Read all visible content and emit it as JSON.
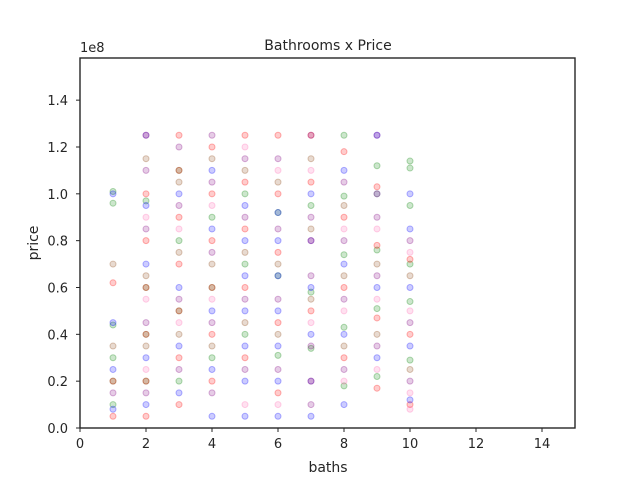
{
  "chart_data": {
    "type": "scatter",
    "title": "Bathrooms x Price",
    "xlabel": "baths",
    "ylabel": "price",
    "y_offset_label": "1e8",
    "xlim": [
      0,
      15
    ],
    "ylim": [
      0,
      158000000
    ],
    "xticks": [
      0,
      2,
      4,
      6,
      8,
      10,
      12,
      14
    ],
    "yticks": [
      0,
      20000000,
      40000000,
      60000000,
      80000000,
      100000000,
      120000000,
      140000000
    ],
    "xtick_labels": [
      "0",
      "2",
      "4",
      "6",
      "8",
      "10",
      "12",
      "14"
    ],
    "ytick_labels": [
      "0.0",
      "0.2",
      "0.4",
      "0.6",
      "0.8",
      "1.0",
      "1.2",
      "1.4"
    ],
    "grid": false,
    "legend": "none",
    "marker_alpha": 0.2,
    "series": [
      {
        "color": "#008000",
        "points": [
          [
            1,
            101000000
          ],
          [
            1,
            96000000
          ],
          [
            1,
            44000000
          ],
          [
            1,
            30000000
          ],
          [
            1,
            20000000
          ],
          [
            1,
            10000000
          ],
          [
            2,
            97000000
          ],
          [
            2,
            60000000
          ],
          [
            2,
            40000000
          ],
          [
            2,
            20000000
          ],
          [
            3,
            110000000
          ],
          [
            3,
            80000000
          ],
          [
            3,
            50000000
          ],
          [
            3,
            20000000
          ],
          [
            4,
            90000000
          ],
          [
            4,
            60000000
          ],
          [
            4,
            30000000
          ],
          [
            5,
            100000000
          ],
          [
            5,
            70000000
          ],
          [
            5,
            40000000
          ],
          [
            6,
            92000000
          ],
          [
            6,
            65000000
          ],
          [
            6,
            31000000
          ],
          [
            7,
            95000000
          ],
          [
            7,
            58000000
          ],
          [
            7,
            34000000
          ],
          [
            8,
            125000000
          ],
          [
            8,
            99000000
          ],
          [
            8,
            74000000
          ],
          [
            8,
            43000000
          ],
          [
            8,
            18000000
          ],
          [
            9,
            112000000
          ],
          [
            9,
            76000000
          ],
          [
            9,
            51000000
          ],
          [
            9,
            22000000
          ],
          [
            10,
            114000000
          ],
          [
            10,
            111000000
          ],
          [
            10,
            95000000
          ],
          [
            10,
            70000000
          ],
          [
            10,
            54000000
          ],
          [
            10,
            29000000
          ]
        ]
      },
      {
        "color": "#ff0000",
        "points": [
          [
            1,
            62000000
          ],
          [
            1,
            20000000
          ],
          [
            1,
            5000000
          ],
          [
            2,
            125000000
          ],
          [
            2,
            100000000
          ],
          [
            2,
            80000000
          ],
          [
            2,
            60000000
          ],
          [
            2,
            40000000
          ],
          [
            2,
            20000000
          ],
          [
            2,
            5000000
          ],
          [
            3,
            125000000
          ],
          [
            3,
            110000000
          ],
          [
            3,
            90000000
          ],
          [
            3,
            70000000
          ],
          [
            3,
            50000000
          ],
          [
            3,
            30000000
          ],
          [
            3,
            10000000
          ],
          [
            4,
            120000000
          ],
          [
            4,
            100000000
          ],
          [
            4,
            80000000
          ],
          [
            4,
            60000000
          ],
          [
            4,
            40000000
          ],
          [
            4,
            20000000
          ],
          [
            5,
            125000000
          ],
          [
            5,
            105000000
          ],
          [
            5,
            85000000
          ],
          [
            5,
            60000000
          ],
          [
            5,
            30000000
          ],
          [
            6,
            125000000
          ],
          [
            6,
            100000000
          ],
          [
            6,
            75000000
          ],
          [
            6,
            45000000
          ],
          [
            6,
            15000000
          ],
          [
            7,
            125000000
          ],
          [
            7,
            105000000
          ],
          [
            7,
            80000000
          ],
          [
            7,
            50000000
          ],
          [
            7,
            20000000
          ],
          [
            8,
            118000000
          ],
          [
            8,
            90000000
          ],
          [
            8,
            60000000
          ],
          [
            8,
            30000000
          ],
          [
            9,
            103000000
          ],
          [
            9,
            78000000
          ],
          [
            9,
            47000000
          ],
          [
            9,
            17000000
          ],
          [
            10,
            72000000
          ],
          [
            10,
            40000000
          ],
          [
            10,
            10000000
          ]
        ]
      },
      {
        "color": "#0000ff",
        "points": [
          [
            1,
            100000000
          ],
          [
            1,
            45000000
          ],
          [
            1,
            25000000
          ],
          [
            1,
            8000000
          ],
          [
            2,
            125000000
          ],
          [
            2,
            95000000
          ],
          [
            2,
            70000000
          ],
          [
            2,
            30000000
          ],
          [
            2,
            10000000
          ],
          [
            3,
            100000000
          ],
          [
            3,
            60000000
          ],
          [
            3,
            35000000
          ],
          [
            3,
            15000000
          ],
          [
            4,
            110000000
          ],
          [
            4,
            85000000
          ],
          [
            4,
            50000000
          ],
          [
            4,
            25000000
          ],
          [
            4,
            5000000
          ],
          [
            5,
            95000000
          ],
          [
            5,
            80000000
          ],
          [
            5,
            65000000
          ],
          [
            5,
            50000000
          ],
          [
            5,
            35000000
          ],
          [
            5,
            20000000
          ],
          [
            5,
            5000000
          ],
          [
            6,
            92000000
          ],
          [
            6,
            80000000
          ],
          [
            6,
            65000000
          ],
          [
            6,
            50000000
          ],
          [
            6,
            35000000
          ],
          [
            6,
            20000000
          ],
          [
            6,
            5000000
          ],
          [
            7,
            100000000
          ],
          [
            7,
            80000000
          ],
          [
            7,
            60000000
          ],
          [
            7,
            40000000
          ],
          [
            7,
            20000000
          ],
          [
            7,
            5000000
          ],
          [
            8,
            110000000
          ],
          [
            8,
            70000000
          ],
          [
            8,
            40000000
          ],
          [
            8,
            10000000
          ],
          [
            9,
            125000000
          ],
          [
            9,
            100000000
          ],
          [
            9,
            60000000
          ],
          [
            9,
            30000000
          ],
          [
            10,
            100000000
          ],
          [
            10,
            85000000
          ],
          [
            10,
            60000000
          ],
          [
            10,
            35000000
          ],
          [
            10,
            12000000
          ]
        ]
      },
      {
        "color": "#800080",
        "points": [
          [
            1,
            15000000
          ],
          [
            2,
            110000000
          ],
          [
            2,
            85000000
          ],
          [
            2,
            45000000
          ],
          [
            2,
            15000000
          ],
          [
            3,
            120000000
          ],
          [
            3,
            95000000
          ],
          [
            3,
            55000000
          ],
          [
            3,
            25000000
          ],
          [
            4,
            125000000
          ],
          [
            4,
            105000000
          ],
          [
            4,
            75000000
          ],
          [
            4,
            45000000
          ],
          [
            4,
            15000000
          ],
          [
            5,
            115000000
          ],
          [
            5,
            90000000
          ],
          [
            5,
            55000000
          ],
          [
            5,
            25000000
          ],
          [
            6,
            115000000
          ],
          [
            6,
            85000000
          ],
          [
            6,
            55000000
          ],
          [
            6,
            25000000
          ],
          [
            7,
            125000000
          ],
          [
            7,
            90000000
          ],
          [
            7,
            65000000
          ],
          [
            7,
            35000000
          ],
          [
            7,
            10000000
          ],
          [
            8,
            105000000
          ],
          [
            8,
            80000000
          ],
          [
            8,
            55000000
          ],
          [
            8,
            25000000
          ],
          [
            9,
            125000000
          ],
          [
            9,
            90000000
          ],
          [
            9,
            65000000
          ],
          [
            9,
            35000000
          ],
          [
            10,
            80000000
          ],
          [
            10,
            45000000
          ],
          [
            10,
            20000000
          ]
        ]
      },
      {
        "color": "#8b4513",
        "points": [
          [
            1,
            70000000
          ],
          [
            1,
            35000000
          ],
          [
            2,
            115000000
          ],
          [
            2,
            65000000
          ],
          [
            2,
            35000000
          ],
          [
            3,
            105000000
          ],
          [
            3,
            75000000
          ],
          [
            3,
            40000000
          ],
          [
            4,
            115000000
          ],
          [
            4,
            70000000
          ],
          [
            4,
            35000000
          ],
          [
            5,
            110000000
          ],
          [
            5,
            75000000
          ],
          [
            5,
            45000000
          ],
          [
            6,
            105000000
          ],
          [
            6,
            70000000
          ],
          [
            6,
            40000000
          ],
          [
            7,
            115000000
          ],
          [
            7,
            85000000
          ],
          [
            7,
            55000000
          ],
          [
            8,
            95000000
          ],
          [
            8,
            65000000
          ],
          [
            8,
            35000000
          ],
          [
            9,
            100000000
          ],
          [
            9,
            70000000
          ],
          [
            9,
            40000000
          ],
          [
            10,
            65000000
          ],
          [
            10,
            25000000
          ]
        ]
      },
      {
        "color": "#ff69b4",
        "points": [
          [
            2,
            90000000
          ],
          [
            2,
            55000000
          ],
          [
            2,
            25000000
          ],
          [
            3,
            85000000
          ],
          [
            3,
            45000000
          ],
          [
            4,
            95000000
          ],
          [
            4,
            55000000
          ],
          [
            5,
            120000000
          ],
          [
            5,
            10000000
          ],
          [
            6,
            110000000
          ],
          [
            6,
            10000000
          ],
          [
            7,
            110000000
          ],
          [
            7,
            45000000
          ],
          [
            8,
            85000000
          ],
          [
            8,
            50000000
          ],
          [
            8,
            20000000
          ],
          [
            9,
            85000000
          ],
          [
            9,
            55000000
          ],
          [
            9,
            25000000
          ],
          [
            10,
            75000000
          ],
          [
            10,
            50000000
          ],
          [
            10,
            15000000
          ],
          [
            10,
            8000000
          ]
        ]
      }
    ]
  }
}
